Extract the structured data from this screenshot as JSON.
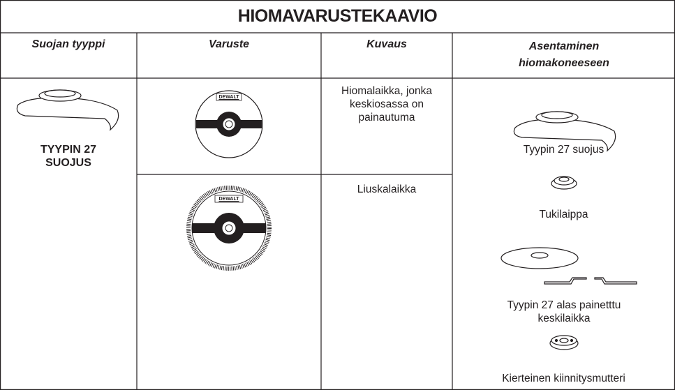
{
  "title": "HIOMAVARUSTEKAAVIO",
  "headers": [
    "Suojan tyyppi",
    "Varuste",
    "Kuvaus",
    "Asentaminen hiomakoneeseen"
  ],
  "guard": {
    "label": "TYYPIN 27 SUOJUS"
  },
  "accessories": [
    {
      "logo": "DEWALT",
      "description": "Hiomalaikka, jonka keskiosassa on painautuma"
    },
    {
      "logo": "DEWALT",
      "description": "Liuskalaikka"
    }
  ],
  "mounting": [
    "Tyypin 27 suojus",
    "Tukilaippa",
    "Tyypin 27 alas painetttu keskilaikka",
    "Kierteinen kiinnitysmutteri"
  ]
}
